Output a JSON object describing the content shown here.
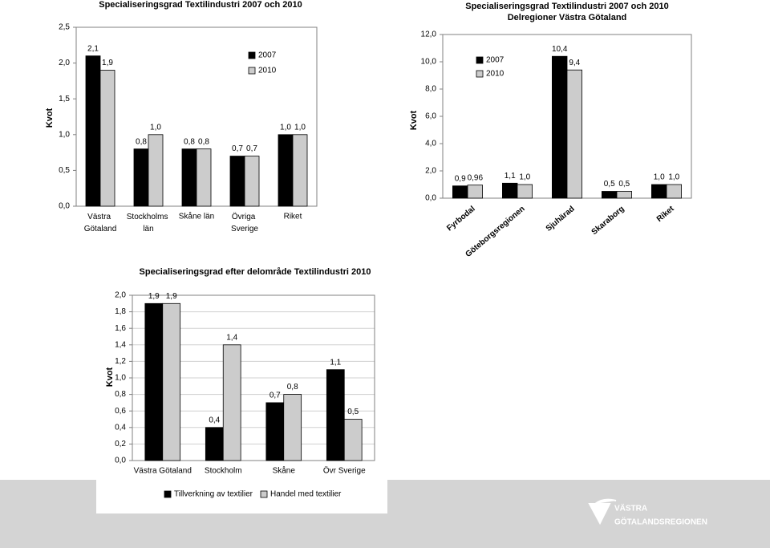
{
  "chart_data": [
    {
      "type": "bar",
      "title": "Specialiseringsgrad Textilindustri 2007 och 2010",
      "y_label": "Kvot",
      "categories": [
        "Västra Götaland",
        "Stockholms län",
        "Skåne län",
        "Övriga Sverige",
        "Riket"
      ],
      "series": [
        {
          "name": "2007",
          "color": "#000000",
          "values": [
            2.1,
            0.8,
            0.8,
            0.7,
            1.0
          ],
          "value_labels": [
            "2,1",
            "0,8",
            "0,8",
            "0,7",
            "1,0"
          ]
        },
        {
          "name": "2010",
          "color": "#cccccc",
          "values": [
            1.9,
            1.0,
            0.8,
            0.7,
            1.0
          ],
          "value_labels": [
            "1,9",
            "1,0",
            "0,8",
            "0,7",
            "1,0"
          ]
        }
      ],
      "ylim": [
        0,
        2.5
      ],
      "yticks": [
        {
          "value": 0,
          "label": "0,0"
        },
        {
          "value": 0.5,
          "label": "0,5"
        },
        {
          "value": 1,
          "label": "1,0"
        },
        {
          "value": 1.5,
          "label": "1,5"
        },
        {
          "value": 2,
          "label": "2,0"
        },
        {
          "value": 2.5,
          "label": "2,5"
        }
      ],
      "grid": false,
      "legend": "upper right"
    },
    {
      "type": "bar",
      "title": "Specialiseringsgrad Textilindustri 2007 och 2010",
      "subtitle": "Delregioner Västra Götaland",
      "y_label": "Kvot",
      "categories": [
        "Fyrbodal",
        "Göteborgsregionen",
        "Sjuhärad",
        "Skaraborg",
        "Riket"
      ],
      "series": [
        {
          "name": "2007",
          "color": "#000000",
          "values": [
            0.9,
            1.1,
            10.4,
            0.5,
            1.0
          ],
          "value_labels": [
            "0,9",
            "1,1",
            "10,4",
            "0,5",
            "1,0"
          ]
        },
        {
          "name": "2010",
          "color": "#cccccc",
          "values": [
            0.96,
            1.0,
            9.4,
            0.5,
            1.0
          ],
          "value_labels": [
            "0,96",
            "1,0",
            "9,4",
            "0,5",
            "1,0"
          ]
        }
      ],
      "ylim": [
        0,
        12
      ],
      "yticks": [
        {
          "value": 0,
          "label": "0,0"
        },
        {
          "value": 2,
          "label": "2,0"
        },
        {
          "value": 4,
          "label": "4,0"
        },
        {
          "value": 6,
          "label": "6,0"
        },
        {
          "value": 8,
          "label": "8,0"
        },
        {
          "value": 10,
          "label": "10,0"
        },
        {
          "value": 12,
          "label": "12,0"
        }
      ],
      "grid": false,
      "legend": "upper left"
    },
    {
      "type": "bar",
      "title": "Specialiseringsgrad efter delområde Textilindustri 2010",
      "y_label": "Kvot",
      "categories": [
        "Västra Götaland",
        "Stockholm",
        "Skåne",
        "Övr Sverige"
      ],
      "series": [
        {
          "name": "Tillverkning av textilier",
          "color": "#000000",
          "values": [
            1.9,
            0.4,
            0.7,
            1.1
          ],
          "value_labels": [
            "1,9",
            "0,4",
            "0,7",
            "1,1"
          ]
        },
        {
          "name": "Handel med textilier",
          "color": "#cccccc",
          "values": [
            1.9,
            1.4,
            0.8,
            0.5
          ],
          "value_labels": [
            "1,9",
            "1,4",
            "0,8",
            "0,5"
          ]
        }
      ],
      "ylim": [
        0,
        2
      ],
      "yticks": [
        {
          "value": 0,
          "label": "0,0"
        },
        {
          "value": 0.2,
          "label": "0,2"
        },
        {
          "value": 0.4,
          "label": "0,4"
        },
        {
          "value": 0.6,
          "label": "0,6"
        },
        {
          "value": 0.8,
          "label": "0,8"
        },
        {
          "value": 1,
          "label": "1,0"
        },
        {
          "value": 1.2,
          "label": "1,2"
        },
        {
          "value": 1.4,
          "label": "1,4"
        },
        {
          "value": 1.6,
          "label": "1,6"
        },
        {
          "value": 1.8,
          "label": "1,8"
        },
        {
          "value": 2,
          "label": "2,0"
        }
      ],
      "grid": true,
      "legend": "bottom"
    }
  ],
  "logo": {
    "line1": "VÄSTRA",
    "line2": "GÖTALANDSREGIONEN"
  }
}
